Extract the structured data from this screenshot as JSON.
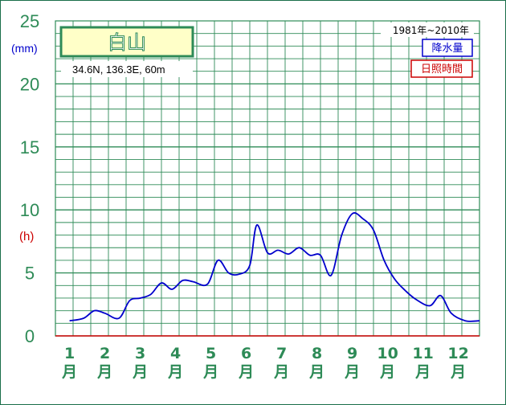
{
  "chart_data": {
    "type": "line",
    "title": "白山",
    "location": "34.6N,  136.3E,  60m",
    "period": "1981年~2010年",
    "y_ticks": [
      "0",
      "5",
      "10",
      "15",
      "20",
      "25"
    ],
    "ylim": [
      0,
      25
    ],
    "y_units": {
      "precip": "(mm)",
      "sunshine": "(h)"
    },
    "months": [
      {
        "num": "1",
        "suffix": "月"
      },
      {
        "num": "2",
        "suffix": "月"
      },
      {
        "num": "3",
        "suffix": "月"
      },
      {
        "num": "4",
        "suffix": "月"
      },
      {
        "num": "5",
        "suffix": "月"
      },
      {
        "num": "6",
        "suffix": "月"
      },
      {
        "num": "7",
        "suffix": "月"
      },
      {
        "num": "8",
        "suffix": "月"
      },
      {
        "num": "9",
        "suffix": "月"
      },
      {
        "num": "10",
        "suffix": "月"
      },
      {
        "num": "11",
        "suffix": "月"
      },
      {
        "num": "12",
        "suffix": "月"
      }
    ],
    "legend": [
      {
        "name": "降水量",
        "color": "#0000cc"
      },
      {
        "name": "日照時間",
        "color": "#cc0000"
      }
    ],
    "series": [
      {
        "name": "降水量",
        "color": "#0000cc",
        "x": [
          1.0,
          1.4,
          1.7,
          2.0,
          2.4,
          2.7,
          3.0,
          3.3,
          3.6,
          3.9,
          4.2,
          4.5,
          4.9,
          5.2,
          5.5,
          5.8,
          6.1,
          6.3,
          6.6,
          6.9,
          7.2,
          7.5,
          7.8,
          8.1,
          8.4,
          8.7,
          9.0,
          9.3,
          9.6,
          9.9,
          10.2,
          10.5,
          10.8,
          11.2,
          11.5,
          11.8,
          12.2,
          12.6
        ],
        "values": [
          1.2,
          1.4,
          2.0,
          1.8,
          1.4,
          2.8,
          3.0,
          3.3,
          4.2,
          3.7,
          4.4,
          4.3,
          4.1,
          6.0,
          5.0,
          4.9,
          5.6,
          8.8,
          6.6,
          6.8,
          6.5,
          7.0,
          6.4,
          6.4,
          4.8,
          8.0,
          9.7,
          9.3,
          8.4,
          6.0,
          4.5,
          3.6,
          2.9,
          2.4,
          3.2,
          1.8,
          1.2,
          1.2
        ]
      },
      {
        "name": "日照時間",
        "color": "#cc0000",
        "x": [
          0.6,
          12.6
        ],
        "values": [
          0,
          0
        ]
      }
    ],
    "grid": true
  }
}
